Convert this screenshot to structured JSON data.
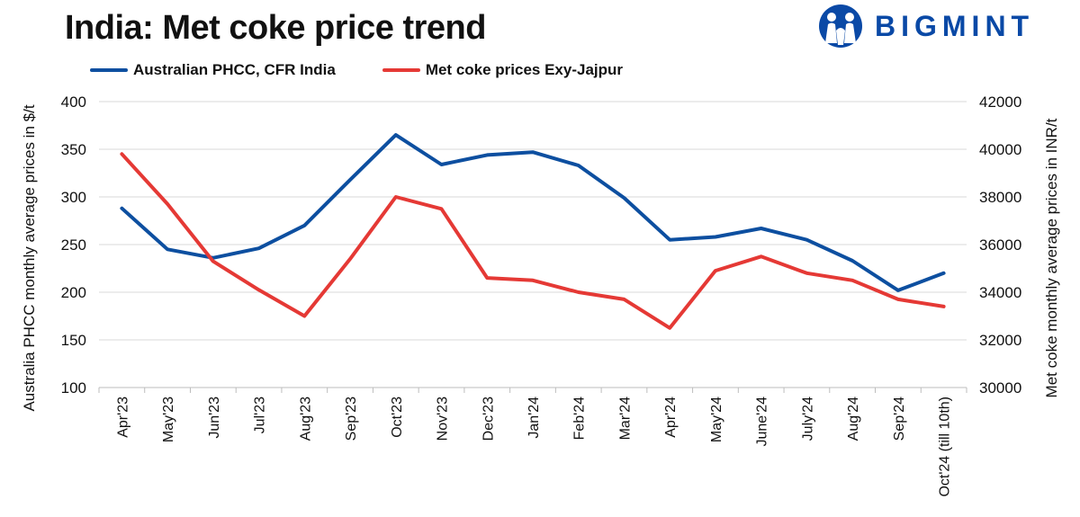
{
  "title": "India: Met coke price trend",
  "brand": {
    "name": "BIGMINT",
    "logo_icon": "bigmint-people-logo",
    "color": "#0a49a6"
  },
  "chart_data": {
    "type": "line",
    "title": "India: Met coke price trend",
    "categories": [
      "Apr'23",
      "May'23",
      "Jun'23",
      "Jul'23",
      "Aug'23",
      "Sep'23",
      "Oct'23",
      "Nov'23",
      "Dec'23",
      "Jan'24",
      "Feb'24",
      "Mar'24",
      "Apr'24",
      "May'24",
      "June'24",
      "July'24",
      "Aug'24",
      "Sep'24",
      "Oct'24 (till 10th)"
    ],
    "series": [
      {
        "name": "Australian PHCC, CFR India",
        "axis": "left",
        "color": "#0d4fa0",
        "values": [
          288,
          245,
          236,
          246,
          270,
          318,
          365,
          334,
          344,
          347,
          333,
          299,
          255,
          258,
          267,
          255,
          233,
          202,
          220
        ]
      },
      {
        "name": "Met coke prices Exy-Jajpur",
        "axis": "right",
        "color": "#e53935",
        "values": [
          39800,
          37700,
          35300,
          34100,
          33000,
          35400,
          38000,
          37500,
          34600,
          34500,
          34000,
          33700,
          32500,
          34900,
          35500,
          34800,
          34500,
          33700,
          33400
        ]
      }
    ],
    "ylabel": "Australia PHCC monthly average prices in $/t",
    "ylim": [
      100,
      400
    ],
    "yticks": [
      100,
      150,
      200,
      250,
      300,
      350,
      400
    ],
    "y2label": "Met coke monthly average prices in INR/t",
    "y2lim": [
      30000,
      42000
    ],
    "y2ticks": [
      30000,
      32000,
      34000,
      36000,
      38000,
      40000,
      42000
    ],
    "grid": true,
    "legend": "top-left"
  }
}
